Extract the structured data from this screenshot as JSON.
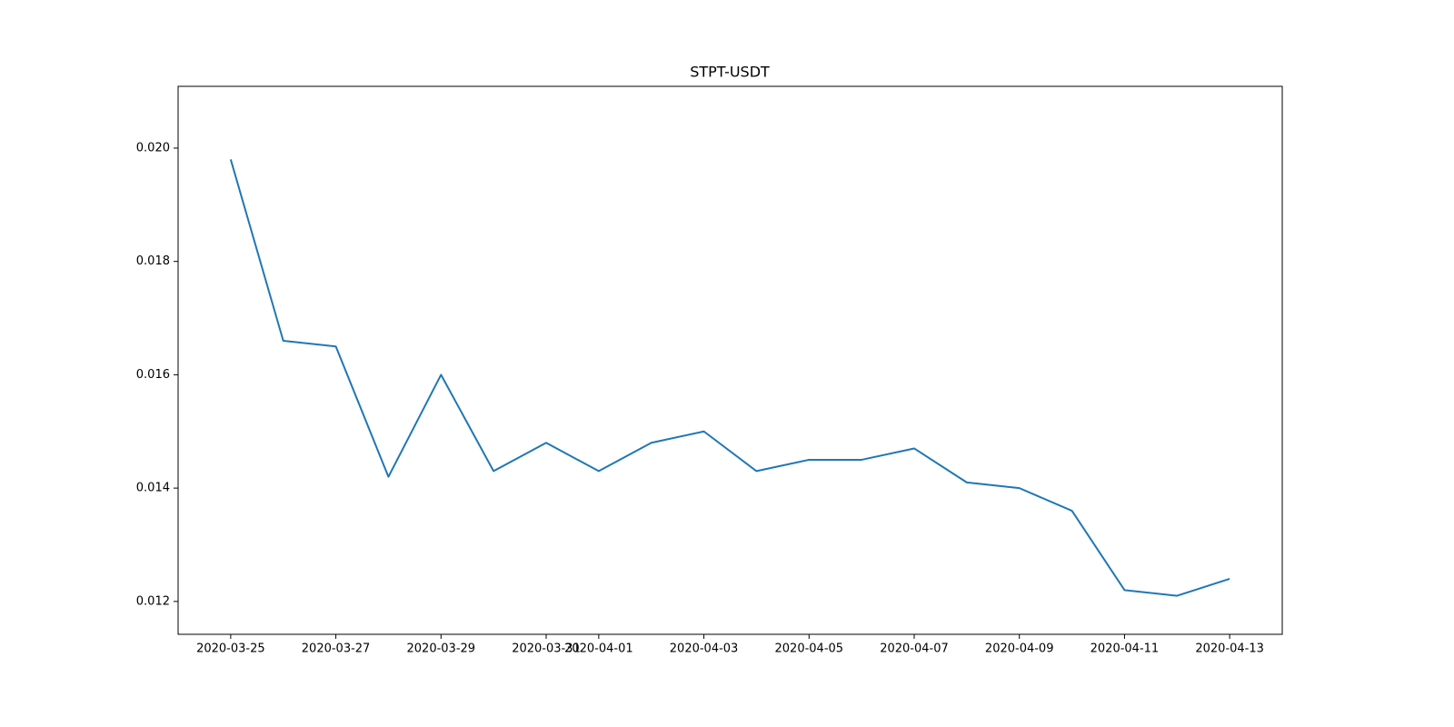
{
  "chart_data": {
    "type": "line",
    "title": "STPT-USDT",
    "x": [
      "2020-03-25",
      "2020-03-26",
      "2020-03-27",
      "2020-03-28",
      "2020-03-29",
      "2020-03-30",
      "2020-03-31",
      "2020-04-01",
      "2020-04-02",
      "2020-04-03",
      "2020-04-04",
      "2020-04-05",
      "2020-04-06",
      "2020-04-07",
      "2020-04-08",
      "2020-04-09",
      "2020-04-10",
      "2020-04-11",
      "2020-04-12",
      "2020-04-13"
    ],
    "series": [
      {
        "name": "STPT-USDT",
        "color": "#1f77b4",
        "values": [
          0.0198,
          0.0166,
          0.0165,
          0.0142,
          0.016,
          0.0143,
          0.0148,
          0.0143,
          0.0148,
          0.015,
          0.0143,
          0.0145,
          0.0145,
          0.0147,
          0.0141,
          0.014,
          0.0136,
          0.0122,
          0.0121,
          0.0124
        ]
      }
    ],
    "xlim": [
      "2020-03-24",
      "2020-04-14"
    ],
    "xticks": [
      "2020-03-25",
      "2020-03-27",
      "2020-03-29",
      "2020-03-31",
      "2020-04-01",
      "2020-04-03",
      "2020-04-05",
      "2020-04-07",
      "2020-04-09",
      "2020-04-11",
      "2020-04-13"
    ],
    "ylim": [
      0.01142,
      0.02109
    ],
    "yticks": [
      0.012,
      0.014,
      0.016,
      0.018,
      {
        "value": 0.02,
        "label": "0.020"
      }
    ],
    "grid": false
  }
}
